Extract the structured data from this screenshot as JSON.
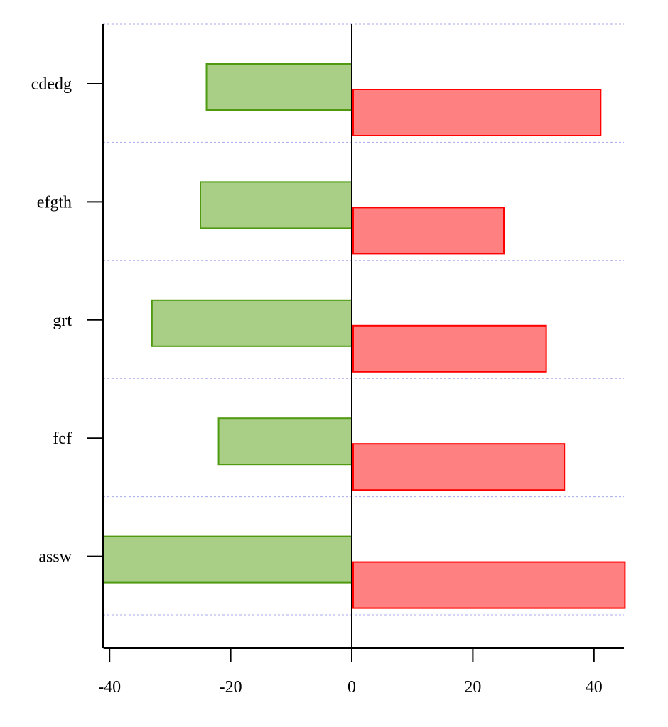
{
  "chart_data": {
    "type": "bar",
    "orientation": "horizontal",
    "categories": [
      "cdedg",
      "efgth",
      "grt",
      "fef",
      "assw"
    ],
    "series": [
      {
        "values": [
          -24,
          -25,
          -33,
          -22,
          -41
        ],
        "color": "#a8cf85",
        "stroke": "#4f9a10"
      },
      {
        "values": [
          41,
          25,
          32,
          35,
          45
        ],
        "color": "#ff8080",
        "stroke": "#ff0000"
      }
    ],
    "xlim": [
      -41,
      45
    ],
    "x_ticks": [
      -40,
      -20,
      0,
      20,
      40
    ],
    "x_tick_labels": [
      "-40",
      "-20",
      "0",
      "20",
      "40"
    ],
    "grid": "horizontal dashed",
    "grid_color": "#aaaaee",
    "zero_line": true
  }
}
